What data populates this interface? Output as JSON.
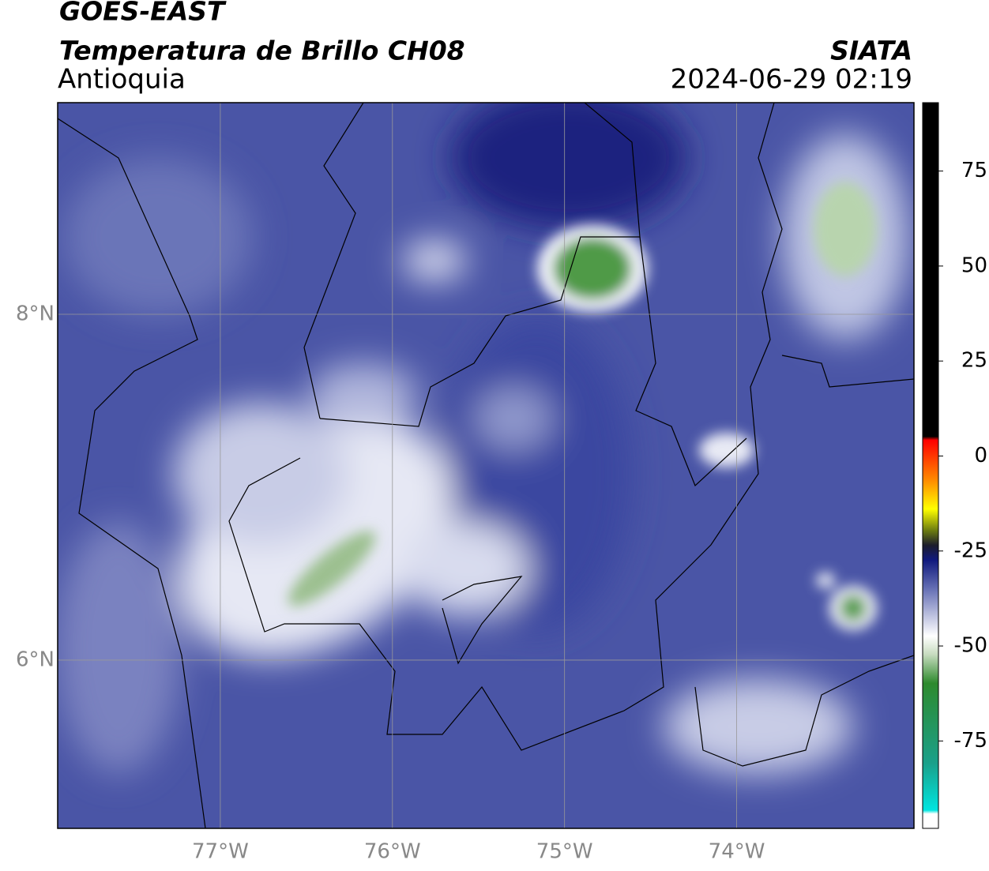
{
  "header": {
    "satellite": "GOES-EAST",
    "product": "Temperatura de Brillo CH08",
    "region": "Antioquia",
    "source": "SIATA",
    "datetime": "2024-06-29 02:19"
  },
  "map": {
    "lonlim": [
      -77.945,
      -72.97
    ],
    "latlim": [
      5.027,
      9.224
    ],
    "lon_ticks": [
      {
        "value": -77,
        "label": "77°W"
      },
      {
        "value": -76,
        "label": "76°W"
      },
      {
        "value": -75,
        "label": "75°W"
      },
      {
        "value": -74,
        "label": "74°W"
      }
    ],
    "lat_ticks": [
      {
        "value": 8,
        "label": "8°N"
      },
      {
        "value": 6,
        "label": "6°N"
      }
    ]
  },
  "colorbar": {
    "lim": [
      -98,
      93
    ],
    "ticks": [
      -75,
      -50,
      -25,
      0,
      25,
      50,
      75
    ]
  }
}
